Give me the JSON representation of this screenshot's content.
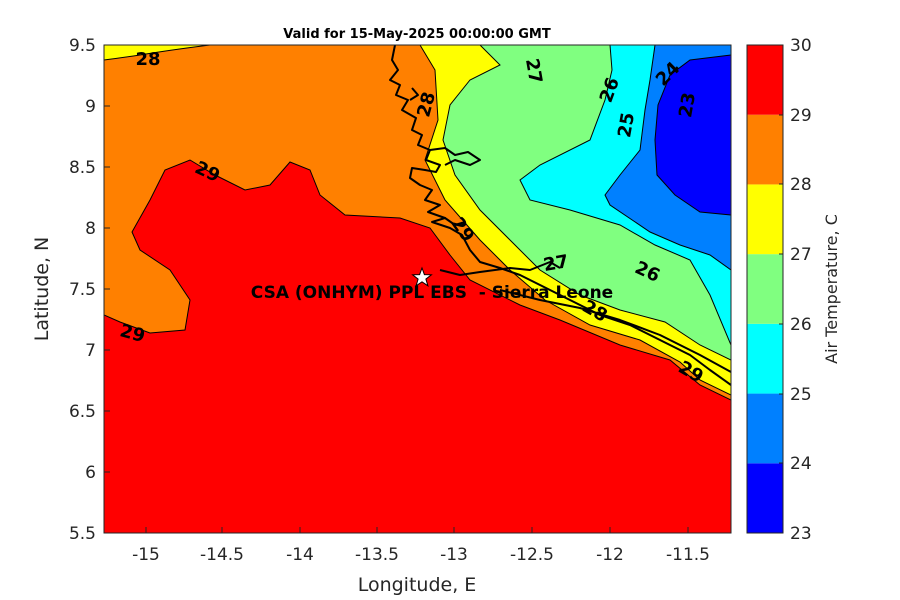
{
  "title": "Valid for 15-May-2025 00:00:00 GMT",
  "xlabel": "Longitude, E",
  "ylabel": "Latitude, N",
  "colorbar_label": "Air Temperature, C",
  "site_label": "CSA (ONHYM) PPL EBS  - Sierra Leone",
  "site_marker": "star-icon",
  "x_ticks": [
    "-15",
    "-14.5",
    "-14",
    "-13.5",
    "-13",
    "-12.5",
    "-12",
    "-11.5"
  ],
  "y_ticks": [
    "9.5",
    "9",
    "8.5",
    "8",
    "7.5",
    "7",
    "6.5",
    "6",
    "5.5"
  ],
  "colorbar_ticks": [
    "30",
    "29",
    "28",
    "27",
    "26",
    "25",
    "24",
    "23"
  ],
  "contour_labels": [
    "28",
    "29",
    "28",
    "27",
    "26",
    "24",
    "25",
    "23",
    "29",
    "27",
    "26",
    "28",
    "29",
    "29"
  ],
  "chart_data": {
    "type": "heatmap",
    "title": "Valid for 15-May-2025 00:00:00 GMT",
    "xlabel": "Longitude, E",
    "ylabel": "Latitude, N",
    "xlim": [
      -15.25,
      -11.25
    ],
    "ylim": [
      5.5,
      9.5
    ],
    "colorbar": {
      "label": "Air Temperature, C",
      "range": [
        23,
        30
      ],
      "levels": [
        23,
        24,
        25,
        26,
        27,
        28,
        29,
        30
      ],
      "colors": [
        "#0000ff",
        "#0080ff",
        "#00ffff",
        "#80ff80",
        "#ffff00",
        "#ff8000",
        "#ff0000",
        "#800000"
      ]
    },
    "site": {
      "name": "CSA (ONHYM) PPL EBS  - Sierra Leone",
      "lon": -13.22,
      "lat": 7.6
    }
  }
}
